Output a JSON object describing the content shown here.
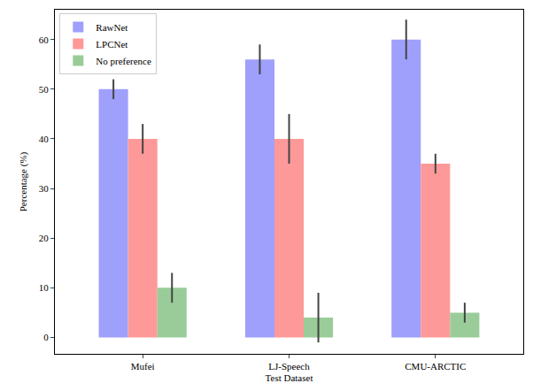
{
  "chart_data": {
    "type": "bar",
    "x_label": "Test Dataset",
    "y_label": "Percentage (%)",
    "categories": [
      "Mufei",
      "LJ-Speech",
      "CMU-ARCTIC"
    ],
    "series": [
      {
        "name": "RawNet",
        "color": "#9f9ffc",
        "values": [
          50,
          56,
          60
        ],
        "errors": [
          2,
          3,
          4
        ]
      },
      {
        "name": "LPCNet",
        "color": "#fe9999",
        "values": [
          40,
          40,
          35
        ],
        "errors": [
          3,
          5,
          2
        ]
      },
      {
        "name": "No preference",
        "color": "#99cc99",
        "values": [
          10,
          4,
          5
        ],
        "errors": [
          3,
          5,
          2
        ]
      }
    ],
    "ylim": [
      -3.3,
      66
    ],
    "yticks": [
      0,
      10,
      20,
      30,
      40,
      50,
      60
    ],
    "grid": false,
    "legend": "upper left"
  }
}
